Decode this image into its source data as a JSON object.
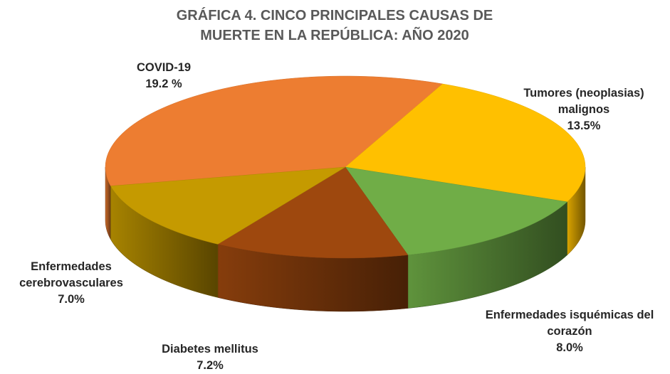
{
  "chart_data": {
    "type": "pie3d",
    "title": "GRÁFICA 4. CINCO PRINCIPALES CAUSAS DE MUERTE EN LA REPÚBLICA: AÑO 2020",
    "categories": [
      "COVID-19",
      "Tumores (neoplasias) malignos",
      "Enfermedades isquémicas del corazón",
      "Diabetes mellitus",
      "Enfermedades cerebrovasculares"
    ],
    "values": [
      19.2,
      13.5,
      8.0,
      7.2,
      7.0
    ],
    "value_labels": [
      "19.2 %",
      "13.5%",
      "8.0%",
      "7.2%",
      "7.0%"
    ],
    "colors": [
      "#ED7D31",
      "#FFC000",
      "#70AD47",
      "#9E480E",
      "#C59A00"
    ]
  }
}
